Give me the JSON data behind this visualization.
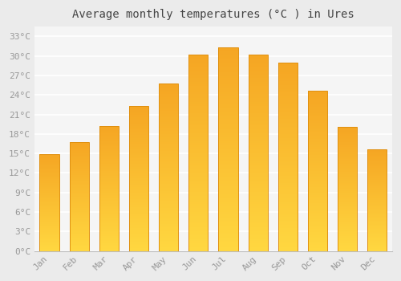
{
  "title": "Average monthly temperatures (°C ) in Ures",
  "months": [
    "Jan",
    "Feb",
    "Mar",
    "Apr",
    "May",
    "Jun",
    "Jul",
    "Aug",
    "Sep",
    "Oct",
    "Nov",
    "Dec"
  ],
  "values": [
    14.9,
    16.7,
    19.2,
    22.3,
    25.7,
    30.2,
    31.3,
    30.2,
    29.0,
    24.7,
    19.1,
    15.6
  ],
  "bar_color_top": "#F5A623",
  "bar_color_bottom": "#FFD740",
  "bar_edge_color": "#E09010",
  "yticks": [
    0,
    3,
    6,
    9,
    12,
    15,
    18,
    21,
    24,
    27,
    30,
    33
  ],
  "ytick_labels": [
    "0°C",
    "3°C",
    "6°C",
    "9°C",
    "12°C",
    "15°C",
    "18°C",
    "21°C",
    "24°C",
    "27°C",
    "30°C",
    "33°C"
  ],
  "ylim": [
    0,
    34.5
  ],
  "background_color": "#ebebeb",
  "plot_background": "#f5f5f5",
  "grid_color": "#ffffff",
  "tick_label_color": "#999999",
  "title_color": "#444444",
  "title_fontsize": 10,
  "tick_fontsize": 8,
  "bar_width": 0.65,
  "n_gradient_steps": 100
}
